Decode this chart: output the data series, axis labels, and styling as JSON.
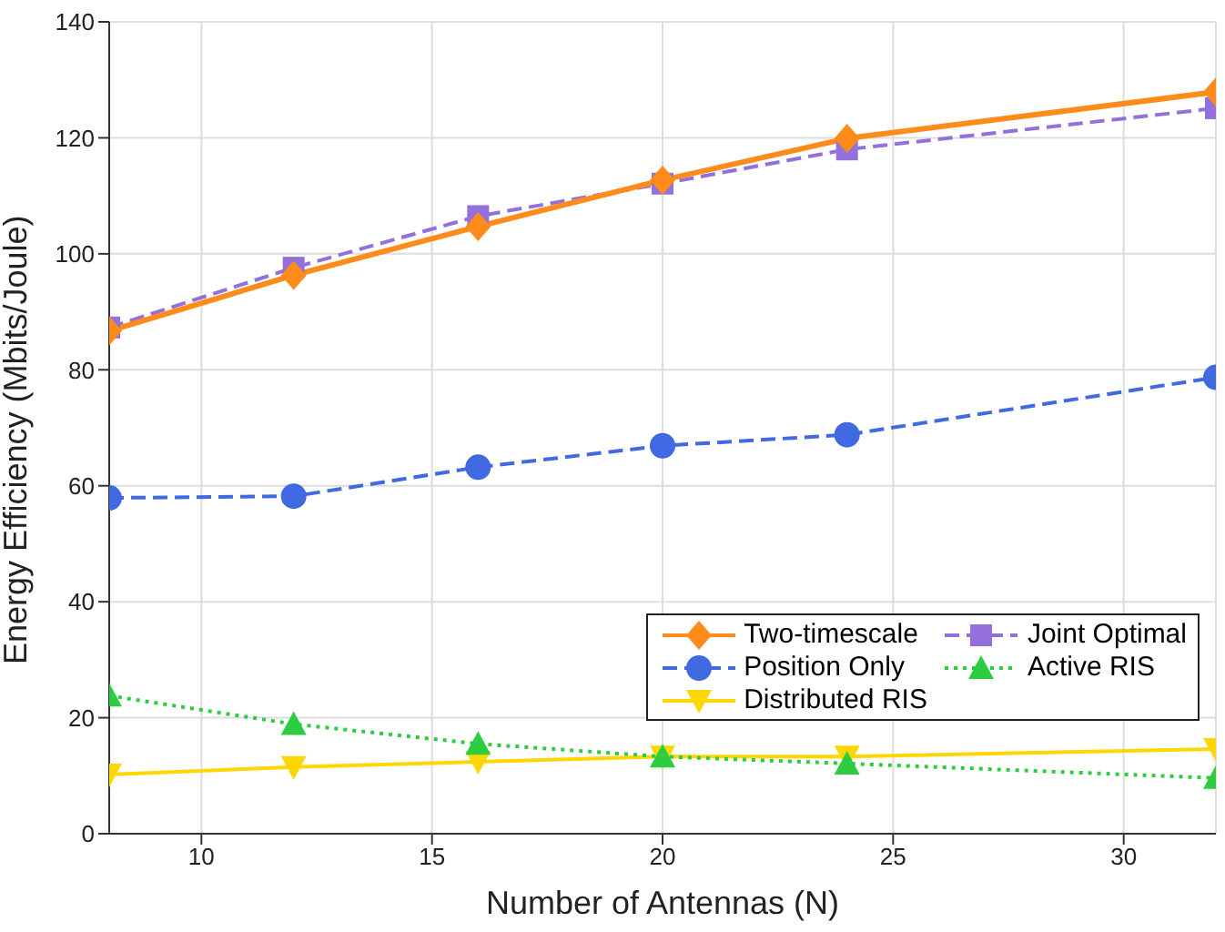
{
  "chart_data": {
    "type": "line",
    "xlabel": "Number of Antennas (N)",
    "ylabel": "Energy Efficiency (Mbits/Joule)",
    "x": [
      8,
      12,
      16,
      20,
      24,
      32
    ],
    "xlim": [
      8,
      32
    ],
    "xticks": [
      10,
      15,
      20,
      25,
      30
    ],
    "ylim": [
      0,
      140
    ],
    "yticks": [
      0,
      20,
      40,
      60,
      80,
      100,
      120,
      140
    ],
    "grid": true,
    "legend": "bottom right",
    "series": [
      {
        "name": "Two-timescale",
        "color": "#ff8c1a",
        "marker": "diamond",
        "line_style": "solid",
        "values": [
          86.7,
          96.3,
          104.7,
          112.7,
          119.9,
          127.9
        ]
      },
      {
        "name": "Joint Optimal",
        "color": "#9370db",
        "marker": "square",
        "line_style": "dashed",
        "values": [
          87.3,
          97.6,
          106.5,
          112.1,
          118,
          125.1
        ]
      },
      {
        "name": "Position Only",
        "color": "#4169e1",
        "marker": "circle",
        "line_style": "dashed",
        "values": [
          57.9,
          58.2,
          63.2,
          66.9,
          68.8,
          78.7
        ]
      },
      {
        "name": "Active RIS",
        "color": "#2ecc40",
        "marker": "triangle",
        "line_style": "dotted",
        "values": [
          23.8,
          18.9,
          15.5,
          13.3,
          12.1,
          9.6
        ]
      },
      {
        "name": "Distributed RIS",
        "color": "#ffd700",
        "marker": "triangle-down",
        "line_style": "solid",
        "values": [
          10.2,
          11.5,
          12.4,
          13.3,
          13.3,
          14.6
        ]
      }
    ]
  }
}
